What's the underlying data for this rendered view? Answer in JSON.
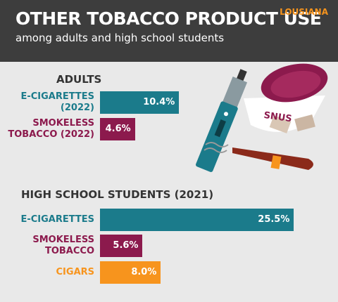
{
  "chart_data": {
    "type": "bar",
    "title": "OTHER TOBACCO PRODUCT USE",
    "subtitle": "among adults and high school students",
    "region": "LOUSIANA",
    "groups": [
      {
        "name": "ADULTS",
        "categories": [
          "E-CIGARETTES\n(2022)",
          "SMOKELESS\nTOBACCO (2022)"
        ],
        "values": [
          10.4,
          4.6
        ],
        "value_labels": [
          "10.4%",
          "4.6%"
        ],
        "colors": [
          "#1b7b8b",
          "#8c1a4d"
        ]
      },
      {
        "name": "HIGH SCHOOL STUDENTS (2021)",
        "categories": [
          "E-CIGARETTES",
          "SMOKELESS\nTOBACCO",
          "CIGARS"
        ],
        "values": [
          25.5,
          5.6,
          8.0
        ],
        "value_labels": [
          "25.5%",
          "5.6%",
          "8.0%"
        ],
        "colors": [
          "#1b7b8b",
          "#8c1a4d",
          "#f7941d"
        ]
      }
    ],
    "illustration_label": "SNUS"
  }
}
